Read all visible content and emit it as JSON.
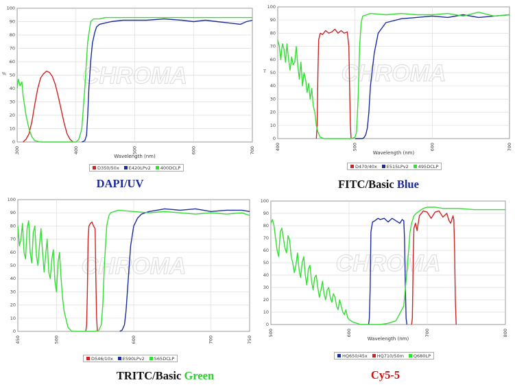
{
  "colors": {
    "red": "#cc2222",
    "blue": "#1a2a9a",
    "green": "#33dd33",
    "grid": "#dddddd",
    "axis": "#999999"
  },
  "watermark": "CHROMA",
  "chart_data": [
    {
      "type": "line",
      "title": "",
      "caption": "DAPI/UV",
      "caption_parts": [
        {
          "text": "DAPI/UV",
          "color": "#1a2a9a"
        }
      ],
      "xlabel": "Wavelength (nm)",
      "ylabel": "%",
      "xlim": [
        300,
        700
      ],
      "ylim": [
        0,
        100
      ],
      "xticks": [
        300,
        400,
        500,
        600,
        700
      ],
      "yticks": [
        0,
        10,
        20,
        30,
        40,
        50,
        60,
        70,
        80,
        90,
        100
      ],
      "legend": [
        "D350/50x",
        "E420LPv2",
        "400DCLP"
      ],
      "series": [
        {
          "name": "D350/50x",
          "color": "red",
          "x": [
            310,
            315,
            320,
            325,
            330,
            335,
            340,
            345,
            350,
            355,
            360,
            365,
            370,
            375,
            380,
            385,
            390,
            395
          ],
          "y": [
            0,
            2,
            6,
            15,
            28,
            40,
            48,
            51,
            53,
            52,
            49,
            43,
            34,
            24,
            14,
            6,
            2,
            0
          ]
        },
        {
          "name": "E420LPv2",
          "color": "blue",
          "x": [
            410,
            415,
            418,
            420,
            422,
            425,
            428,
            432,
            435,
            440,
            450,
            460,
            480,
            500,
            520,
            550,
            580,
            600,
            620,
            640,
            660,
            680,
            690,
            700
          ],
          "y": [
            0,
            1,
            5,
            20,
            40,
            60,
            74,
            82,
            86,
            88,
            89,
            90,
            91,
            91,
            91,
            92,
            91,
            90,
            91,
            90,
            89,
            88,
            90,
            91
          ]
        },
        {
          "name": "400DCLP",
          "color": "green",
          "x": [
            300,
            302,
            305,
            308,
            310,
            315,
            320,
            325,
            330,
            340,
            350,
            360,
            370,
            380,
            390,
            400,
            405,
            410,
            415,
            420,
            425,
            430,
            440,
            450,
            460,
            480,
            500,
            550,
            600,
            650,
            700
          ],
          "y": [
            40,
            47,
            42,
            45,
            35,
            20,
            10,
            4,
            1,
            0,
            0,
            0,
            0,
            0,
            0,
            0,
            2,
            10,
            40,
            75,
            90,
            92,
            92,
            93,
            93,
            93,
            93,
            93,
            93,
            93,
            93
          ]
        }
      ]
    },
    {
      "type": "line",
      "title": "",
      "caption": "FITC/Basic Blue",
      "caption_parts": [
        {
          "text": "FITC/Basic ",
          "color": "#111111"
        },
        {
          "text": "Blue",
          "color": "#1a2a9a"
        }
      ],
      "xlabel": "Wavelength (nm)",
      "ylabel": "T",
      "xlim": [
        400,
        700
      ],
      "ylim": [
        0,
        100
      ],
      "xticks": [
        400,
        500,
        600,
        700
      ],
      "yticks": [
        0,
        10,
        20,
        30,
        40,
        50,
        60,
        70,
        80,
        90,
        100
      ],
      "legend": [
        "D470/40x",
        "E515LPv2",
        "495DCLP"
      ],
      "series": [
        {
          "name": "D470/40x",
          "color": "red",
          "x": [
            450,
            451,
            452,
            453,
            455,
            458,
            462,
            466,
            470,
            474,
            478,
            482,
            486,
            490,
            492,
            493,
            494,
            495
          ],
          "y": [
            0,
            10,
            50,
            75,
            80,
            79,
            82,
            80,
            81,
            83,
            80,
            82,
            80,
            81,
            70,
            40,
            10,
            0
          ]
        },
        {
          "name": "E515LPv2",
          "color": "blue",
          "x": [
            500,
            505,
            510,
            512,
            514,
            516,
            518,
            520,
            525,
            530,
            540,
            560,
            580,
            600,
            620,
            640,
            660,
            680,
            700
          ],
          "y": [
            0,
            0,
            0,
            1,
            3,
            8,
            20,
            40,
            65,
            80,
            88,
            91,
            92,
            93,
            92,
            94,
            92,
            93,
            94
          ]
        },
        {
          "name": "495DCLP",
          "color": "green",
          "x": [
            400,
            402,
            404,
            406,
            408,
            410,
            412,
            414,
            416,
            418,
            420,
            422,
            424,
            426,
            428,
            430,
            432,
            434,
            436,
            438,
            440,
            442,
            444,
            446,
            448,
            450,
            452,
            455,
            460,
            470,
            480,
            490,
            495,
            500,
            502,
            504,
            506,
            508,
            510,
            515,
            520,
            540,
            560,
            580,
            600,
            620,
            640,
            660,
            680,
            700
          ],
          "y": [
            75,
            70,
            60,
            72,
            68,
            58,
            72,
            60,
            52,
            62,
            56,
            58,
            70,
            55,
            45,
            58,
            40,
            50,
            45,
            35,
            42,
            30,
            38,
            25,
            20,
            10,
            5,
            1,
            0,
            0,
            0,
            0,
            0,
            1,
            5,
            30,
            70,
            88,
            93,
            94,
            95,
            94,
            95,
            94,
            94,
            95,
            93,
            96,
            93,
            94
          ]
        }
      ]
    },
    {
      "type": "line",
      "title": "",
      "caption": "TRITC/Basic Green",
      "caption_parts": [
        {
          "text": "TRITC/Basic ",
          "color": "#111111"
        },
        {
          "text": "Green",
          "color": "#33cc33"
        }
      ],
      "xlabel": "",
      "ylabel": "",
      "xlim": [
        450,
        750
      ],
      "ylim": [
        0,
        100
      ],
      "xticks": [
        450,
        500,
        600,
        700,
        750
      ],
      "yticks": [
        0,
        10,
        20,
        30,
        40,
        50,
        60,
        70,
        80,
        90,
        100
      ],
      "legend": [
        "D546/10x",
        "E590LPv2",
        "565DCLP"
      ],
      "series": [
        {
          "name": "D546/10x",
          "color": "red",
          "x": [
            538,
            539,
            540,
            541,
            542,
            544,
            546,
            548,
            550,
            551,
            552,
            553
          ],
          "y": [
            0,
            5,
            30,
            70,
            80,
            82,
            83,
            80,
            78,
            40,
            10,
            0
          ]
        },
        {
          "name": "E590LPv2",
          "color": "blue",
          "x": [
            582,
            585,
            588,
            590,
            593,
            596,
            600,
            605,
            610,
            620,
            630,
            640,
            660,
            680,
            700,
            720,
            740,
            750
          ],
          "y": [
            0,
            1,
            5,
            15,
            40,
            65,
            80,
            86,
            89,
            91,
            92,
            93,
            92,
            93,
            91,
            92,
            92,
            91
          ]
        },
        {
          "name": "565DCLP",
          "color": "green",
          "x": [
            450,
            452,
            454,
            456,
            458,
            460,
            462,
            464,
            466,
            468,
            470,
            472,
            474,
            476,
            478,
            480,
            482,
            484,
            486,
            488,
            490,
            492,
            494,
            496,
            498,
            500,
            502,
            504,
            506,
            508,
            510,
            515,
            520,
            530,
            540,
            550,
            555,
            558,
            560,
            562,
            565,
            568,
            570,
            575,
            580,
            600,
            620,
            640,
            660,
            680,
            700,
            720,
            740,
            750
          ],
          "y": [
            80,
            65,
            70,
            82,
            60,
            55,
            78,
            84,
            60,
            52,
            75,
            80,
            58,
            50,
            65,
            78,
            60,
            45,
            58,
            70,
            45,
            40,
            55,
            62,
            38,
            30,
            52,
            60,
            40,
            25,
            15,
            3,
            0,
            0,
            0,
            0,
            1,
            5,
            20,
            50,
            80,
            88,
            90,
            91,
            92,
            91,
            90,
            91,
            90,
            89,
            90,
            89,
            90,
            88
          ]
        }
      ]
    },
    {
      "type": "line",
      "title": "",
      "caption": "Cy5-5",
      "caption_parts": [
        {
          "text": "Cy5-5",
          "color": "#cc1111"
        }
      ],
      "xlabel": "Wavelength (nm)",
      "ylabel": "",
      "xlim": [
        500,
        800
      ],
      "ylim": [
        0,
        100
      ],
      "xticks": [
        500,
        600,
        700,
        800
      ],
      "yticks": [
        0,
        10,
        20,
        30,
        40,
        50,
        60,
        70,
        80,
        90,
        100
      ],
      "legend": [
        "HQ650/45x",
        "HQ710/50m",
        "Q680LP"
      ],
      "series": [
        {
          "name": "HQ650/45x",
          "color": "blue",
          "x": [
            625,
            626,
            627,
            628,
            630,
            633,
            637,
            640,
            645,
            650,
            655,
            660,
            665,
            668,
            670,
            671,
            672,
            673,
            674
          ],
          "y": [
            0,
            5,
            30,
            75,
            83,
            84,
            86,
            85,
            86,
            83,
            86,
            84,
            82,
            85,
            84,
            70,
            30,
            5,
            0
          ]
        },
        {
          "name": "HQ710/50m",
          "color": "red",
          "x": [
            680,
            681,
            682,
            683,
            685,
            687,
            690,
            695,
            700,
            705,
            710,
            715,
            720,
            725,
            728,
            730,
            733,
            734,
            735,
            736,
            737
          ],
          "y": [
            0,
            5,
            50,
            78,
            82,
            76,
            88,
            92,
            91,
            86,
            91,
            92,
            87,
            90,
            84,
            82,
            88,
            85,
            60,
            20,
            0
          ]
        },
        {
          "name": "Q680LP",
          "color": "green",
          "x": [
            500,
            502,
            504,
            506,
            508,
            510,
            512,
            514,
            516,
            518,
            520,
            522,
            524,
            526,
            528,
            530,
            532,
            534,
            536,
            538,
            540,
            542,
            544,
            546,
            548,
            550,
            552,
            554,
            556,
            558,
            560,
            562,
            564,
            566,
            568,
            570,
            572,
            574,
            576,
            578,
            580,
            582,
            584,
            586,
            588,
            590,
            592,
            594,
            596,
            598,
            600,
            605,
            610,
            615,
            620,
            625,
            630,
            640,
            650,
            660,
            670,
            675,
            678,
            680,
            683,
            686,
            690,
            695,
            700,
            710,
            720,
            740,
            760,
            780,
            800
          ],
          "y": [
            82,
            85,
            80,
            70,
            60,
            55,
            75,
            78,
            70,
            62,
            58,
            72,
            68,
            55,
            50,
            42,
            48,
            58,
            45,
            38,
            50,
            55,
            40,
            32,
            45,
            48,
            35,
            28,
            38,
            40,
            30,
            22,
            28,
            35,
            25,
            20,
            28,
            30,
            22,
            18,
            25,
            22,
            15,
            12,
            20,
            15,
            10,
            8,
            12,
            6,
            4,
            2,
            1,
            0,
            0,
            0,
            0,
            0,
            1,
            3,
            15,
            50,
            75,
            82,
            88,
            90,
            92,
            94,
            95,
            95,
            94,
            94,
            93,
            93,
            93
          ]
        }
      ]
    }
  ]
}
